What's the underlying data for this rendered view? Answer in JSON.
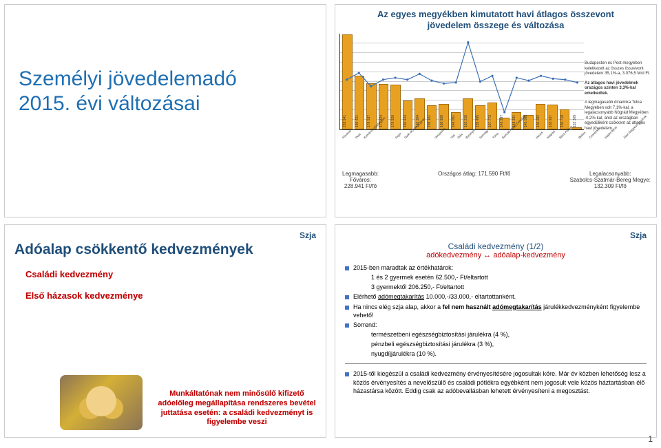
{
  "page_number": "1",
  "q1": {
    "title_l1": "Személyi jövedelemadó",
    "title_l2": "2015. évi változásai"
  },
  "q2": {
    "title": "Az egyes megyékben kimutatott havi átlagos összevont jövedelem összege és változása",
    "chart": {
      "type": "bar+line",
      "ylabel": "Ft/fő",
      "ylim": [
        130000,
        230000
      ],
      "ytick_step": 10000,
      "bar_color": "#e8a020",
      "bar_border": "#a56c0a",
      "line_color": "#3b6fb6",
      "grid_color": "#cccccc",
      "right_ylim_pct": [
        98,
        108
      ],
      "categories": [
        "Főváros",
        "Pest",
        "Komárom-Esztergom",
        "Fejér",
        "Győr-Moson-Sopron",
        "Veszprém",
        "Vas",
        "Zala",
        "Baranya",
        "Somogy",
        "Tolna",
        "Borsod-Abaúj-Zemplén",
        "Heves",
        "Nógrád",
        "Bács-Kiskun",
        "Békés",
        "Csongrád",
        "Hajdú-Bihar",
        "Jász-Nagykun-Szolnok",
        "Szabolcs-Szatmár-Bereg"
      ],
      "bar_values": [
        228941,
        186421,
        178537,
        177324,
        176920,
        160424,
        162304,
        155101,
        156920,
        148051,
        162215,
        155495,
        157772,
        142297,
        148331,
        145055,
        156282,
        155937,
        150718,
        132309
      ],
      "line_values_pct": [
        103.2,
        103.9,
        102.5,
        103.2,
        103.4,
        103.2,
        103.8,
        103.1,
        102.8,
        102.9,
        107.1,
        103.0,
        103.6,
        99.8,
        103.4,
        103.1,
        103.6,
        103.3,
        103.2,
        102.9
      ]
    },
    "notes": {
      "n1": "Budapesten és Pest megyében keletkezett az összes összevont jövedelem 35,1%-a, 3.076,5 Mrd Ft.",
      "n2": "Az átlagos havi jövedelmek országos szinten 3,3%-kal emelkedtek.",
      "n3": "A legmagasabb dinamika Tolna Megyében volt 7,1%-kal, a legalacsonyabb Nógrád Megyében -0,2%-kal, ahol az országban egyedüliként csökkent az átlagos havi jövedelem."
    },
    "bottom": {
      "left_l1": "Legmagasabb:",
      "left_l2": "Főváros:",
      "left_l3": "228.941 Ft/fő",
      "center": "Országos átlag: 171.590 Ft/fő",
      "right_l1": "Legalacsonyabb:",
      "right_l2": "Szabolcs-Szatmár-Bereg Megye:",
      "right_l3": "132.309 Ft/fő"
    }
  },
  "q3": {
    "header": "Szja",
    "title": "Adóalap csökkentő kedvezmények",
    "item1": "Családi kedvezmény",
    "item2": "Első házasok kedvezménye",
    "note": "Munkáltatónak nem minősülő kifizető adóelőleg megállapítása rendszeres bevétel juttatása esetén: a családi kedvezményt is figyelembe veszi"
  },
  "q4": {
    "header": "Szja",
    "sub": "Családi kedvezmény (1/2)",
    "sub2": "adókedvezmény ↔ adóalap-kedvezmény",
    "li1": "2015-ben maradtak az értékhatárok:",
    "li1a": "1 és 2 gyermek esetén 62.500,- Ft/eltartott",
    "li1b": "3 gyermektől 206.250,- Ft/eltartott",
    "li2_pre": "Elérhető ",
    "li2_u": "adómegtakarítás",
    "li2_post": " 10.000,-/33.000,- eltartottanként.",
    "li3_pre": "Ha nincs elég szja alap, akkor a ",
    "li3_b": "fel nem használt ",
    "li3_u": "adómegtakarítás",
    "li3_post": " járulékkedvezményként figyelembe vehető!",
    "li4": "Sorrend:",
    "li4a": "természetbeni egészségbiztosítási járulékra (4 %),",
    "li4b": "pénzbeli egészségbiztosítási járulékra (3 %),",
    "li4c": "nyugdíjjárulékra (10 %).",
    "li5": "2015-től kiegészül a családi kedvezmény érvényesítésére jogosultak köre. Már év közben lehetőség lesz a közös érvényesítés a nevelőszülő és családi pótlékra egyébként nem jogosult vele közös háztartásban élő házastársa között. Eddig csak az adóbevallásban lehetett érvényesíteni a megosztást."
  }
}
